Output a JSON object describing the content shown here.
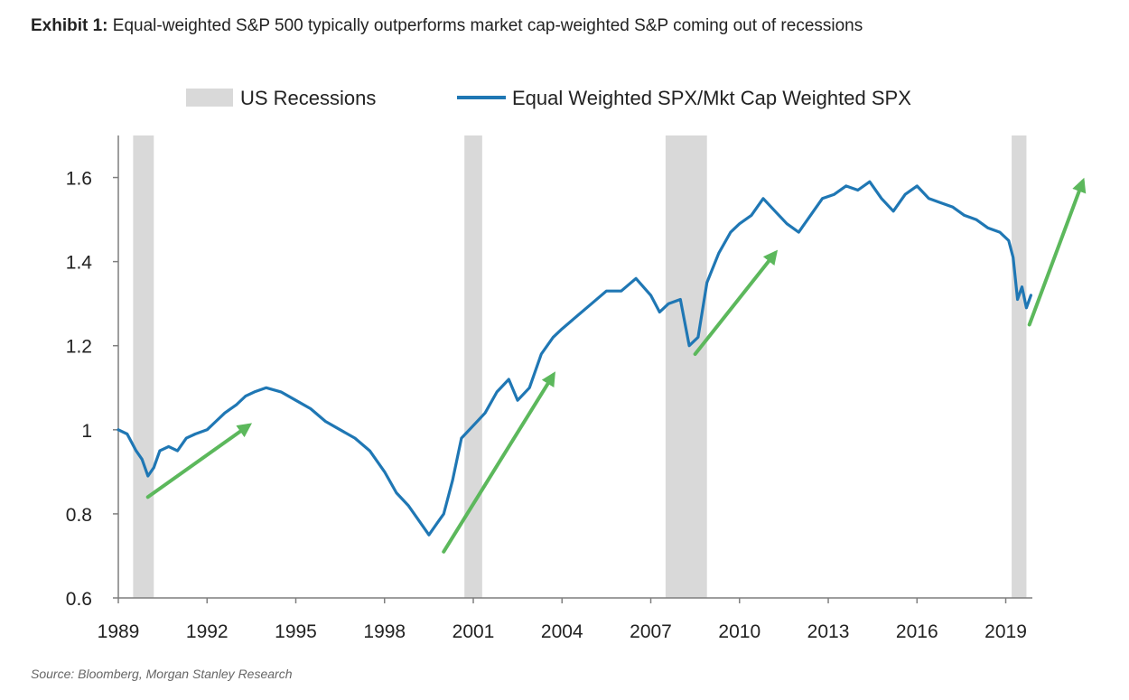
{
  "header": {
    "exhibit_label": "Exhibit 1:",
    "title_text": " Equal-weighted S&P 500 typically outperforms market cap-weighted S&P coming out of recessions"
  },
  "source": "Source: Bloomberg, Morgan Stanley Research",
  "colors": {
    "line": "#1f77b4",
    "recession": "#d9d9d9",
    "arrow": "#5cb85c"
  },
  "chart_data": {
    "type": "line",
    "legend": {
      "placement": "top",
      "recession_label": "US Recessions",
      "series_label": "Equal Weighted SPX/Mkt Cap Weighted SPX"
    },
    "xlim": [
      1989,
      2019.9
    ],
    "ylim": [
      0.6,
      1.7
    ],
    "x_ticks": [
      "1989",
      "1992",
      "1995",
      "1998",
      "2001",
      "2004",
      "2007",
      "2010",
      "2013",
      "2016",
      "2019"
    ],
    "y_ticks": [
      "0.6",
      "0.8",
      "1",
      "1.2",
      "1.4",
      "1.6"
    ],
    "recessions": [
      [
        1989.5,
        1990.2
      ],
      [
        2000.7,
        2001.3
      ],
      [
        2007.5,
        2008.9
      ],
      [
        2019.2,
        2019.7
      ]
    ],
    "series": [
      {
        "name": "Equal Weighted SPX/Mkt Cap Weighted SPX",
        "points": [
          [
            1989.0,
            1.0
          ],
          [
            1989.3,
            0.99
          ],
          [
            1989.6,
            0.95
          ],
          [
            1989.8,
            0.93
          ],
          [
            1990.0,
            0.89
          ],
          [
            1990.2,
            0.91
          ],
          [
            1990.4,
            0.95
          ],
          [
            1990.7,
            0.96
          ],
          [
            1991.0,
            0.95
          ],
          [
            1991.3,
            0.98
          ],
          [
            1991.6,
            0.99
          ],
          [
            1992.0,
            1.0
          ],
          [
            1992.3,
            1.02
          ],
          [
            1992.6,
            1.04
          ],
          [
            1993.0,
            1.06
          ],
          [
            1993.3,
            1.08
          ],
          [
            1993.6,
            1.09
          ],
          [
            1994.0,
            1.1
          ],
          [
            1994.5,
            1.09
          ],
          [
            1995.0,
            1.07
          ],
          [
            1995.5,
            1.05
          ],
          [
            1996.0,
            1.02
          ],
          [
            1996.5,
            1.0
          ],
          [
            1997.0,
            0.98
          ],
          [
            1997.5,
            0.95
          ],
          [
            1998.0,
            0.9
          ],
          [
            1998.4,
            0.85
          ],
          [
            1998.8,
            0.82
          ],
          [
            1999.2,
            0.78
          ],
          [
            1999.5,
            0.75
          ],
          [
            1999.8,
            0.78
          ],
          [
            2000.0,
            0.8
          ],
          [
            2000.3,
            0.88
          ],
          [
            2000.6,
            0.98
          ],
          [
            2001.0,
            1.01
          ],
          [
            2001.4,
            1.04
          ],
          [
            2001.8,
            1.09
          ],
          [
            2002.2,
            1.12
          ],
          [
            2002.5,
            1.07
          ],
          [
            2002.9,
            1.1
          ],
          [
            2003.3,
            1.18
          ],
          [
            2003.7,
            1.22
          ],
          [
            2004.0,
            1.24
          ],
          [
            2004.5,
            1.27
          ],
          [
            2005.0,
            1.3
          ],
          [
            2005.5,
            1.33
          ],
          [
            2006.0,
            1.33
          ],
          [
            2006.5,
            1.36
          ],
          [
            2007.0,
            1.32
          ],
          [
            2007.3,
            1.28
          ],
          [
            2007.6,
            1.3
          ],
          [
            2008.0,
            1.31
          ],
          [
            2008.3,
            1.2
          ],
          [
            2008.6,
            1.22
          ],
          [
            2008.9,
            1.35
          ],
          [
            2009.3,
            1.42
          ],
          [
            2009.7,
            1.47
          ],
          [
            2010.0,
            1.49
          ],
          [
            2010.4,
            1.51
          ],
          [
            2010.8,
            1.55
          ],
          [
            2011.2,
            1.52
          ],
          [
            2011.6,
            1.49
          ],
          [
            2012.0,
            1.47
          ],
          [
            2012.4,
            1.51
          ],
          [
            2012.8,
            1.55
          ],
          [
            2013.2,
            1.56
          ],
          [
            2013.6,
            1.58
          ],
          [
            2014.0,
            1.57
          ],
          [
            2014.4,
            1.59
          ],
          [
            2014.8,
            1.55
          ],
          [
            2015.2,
            1.52
          ],
          [
            2015.6,
            1.56
          ],
          [
            2016.0,
            1.58
          ],
          [
            2016.4,
            1.55
          ],
          [
            2016.8,
            1.54
          ],
          [
            2017.2,
            1.53
          ],
          [
            2017.6,
            1.51
          ],
          [
            2018.0,
            1.5
          ],
          [
            2018.4,
            1.48
          ],
          [
            2018.8,
            1.47
          ],
          [
            2019.1,
            1.45
          ],
          [
            2019.25,
            1.41
          ],
          [
            2019.4,
            1.31
          ],
          [
            2019.55,
            1.34
          ],
          [
            2019.7,
            1.29
          ],
          [
            2019.85,
            1.32
          ]
        ]
      }
    ],
    "annotations": [
      {
        "type": "arrow",
        "from": [
          1990.0,
          0.84
        ],
        "to": [
          1993.4,
          1.01
        ]
      },
      {
        "type": "arrow",
        "from": [
          2000.0,
          0.71
        ],
        "to": [
          2003.7,
          1.13
        ]
      },
      {
        "type": "arrow",
        "from": [
          2008.5,
          1.18
        ],
        "to": [
          2011.2,
          1.42
        ]
      },
      {
        "type": "arrow",
        "from": [
          2019.8,
          1.25
        ],
        "to": [
          2021.6,
          1.59
        ]
      }
    ]
  }
}
